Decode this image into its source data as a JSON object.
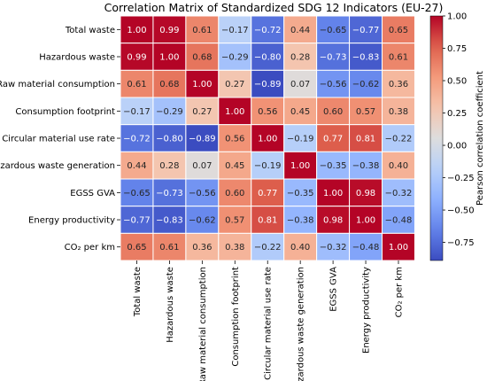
{
  "chart_data": {
    "type": "heatmap",
    "title": "Correlation Matrix of Standardized SDG 12 Indicators (EU-27)",
    "labels": [
      "Total waste",
      "Hazardous waste",
      "Raw material consumption",
      "Consumption footprint",
      "Circular material use rate",
      "Hazardous waste generation",
      "EGSS GVA",
      "Energy productivity",
      "CO₂ per km"
    ],
    "values": [
      [
        1.0,
        0.99,
        0.61,
        -0.17,
        -0.72,
        0.44,
        -0.65,
        -0.77,
        0.65
      ],
      [
        0.99,
        1.0,
        0.68,
        -0.29,
        -0.8,
        0.28,
        -0.73,
        -0.83,
        0.61
      ],
      [
        0.61,
        0.68,
        1.0,
        0.27,
        -0.89,
        0.07,
        -0.56,
        -0.62,
        0.36
      ],
      [
        -0.17,
        -0.29,
        0.27,
        1.0,
        0.56,
        0.45,
        0.6,
        0.57,
        0.38
      ],
      [
        -0.72,
        -0.8,
        -0.89,
        0.56,
        1.0,
        -0.19,
        0.77,
        0.81,
        -0.22
      ],
      [
        0.44,
        0.28,
        0.07,
        0.45,
        -0.19,
        1.0,
        -0.35,
        -0.38,
        0.4
      ],
      [
        -0.65,
        -0.73,
        -0.56,
        0.6,
        0.77,
        -0.35,
        1.0,
        0.98,
        -0.32
      ],
      [
        -0.77,
        -0.83,
        -0.62,
        0.57,
        0.81,
        -0.38,
        0.98,
        1.0,
        -0.48
      ],
      [
        0.65,
        0.61,
        0.36,
        0.38,
        -0.22,
        0.4,
        -0.32,
        -0.48,
        1.0
      ]
    ],
    "value_labels": [
      [
        "1.00",
        "0.99",
        "0.61",
        "−0.17",
        "−0.72",
        "0.44",
        "−0.65",
        "−0.77",
        "0.65"
      ],
      [
        "0.99",
        "1.00",
        "0.68",
        "−0.29",
        "−0.80",
        "0.28",
        "−0.73",
        "−0.83",
        "0.61"
      ],
      [
        "0.61",
        "0.68",
        "1.00",
        "0.27",
        "−0.89",
        "0.07",
        "−0.56",
        "−0.62",
        "0.36"
      ],
      [
        "−0.17",
        "−0.29",
        "0.27",
        "1.00",
        "0.56",
        "0.45",
        "0.60",
        "0.57",
        "0.38"
      ],
      [
        "−0.72",
        "−0.80",
        "−0.89",
        "0.56",
        "1.00",
        "−0.19",
        "0.77",
        "0.81",
        "−0.22"
      ],
      [
        "0.44",
        "0.28",
        "0.07",
        "0.45",
        "−0.19",
        "1.00",
        "−0.35",
        "−0.38",
        "0.40"
      ],
      [
        "−0.65",
        "−0.73",
        "−0.56",
        "0.60",
        "0.77",
        "−0.35",
        "1.00",
        "0.98",
        "−0.32"
      ],
      [
        "−0.77",
        "−0.83",
        "−0.62",
        "0.57",
        "0.81",
        "−0.38",
        "0.98",
        "1.00",
        "−0.48"
      ],
      [
        "0.65",
        "0.61",
        "0.36",
        "0.38",
        "−0.22",
        "0.40",
        "−0.32",
        "−0.48",
        "1.00"
      ]
    ],
    "colorbar": {
      "label": "Pearson correlation coefficient",
      "range": [
        -0.89,
        1.0
      ],
      "ticks": [
        1.0,
        0.75,
        0.5,
        0.25,
        0.0,
        -0.25,
        -0.5,
        -0.75
      ],
      "tick_labels": [
        "1.00",
        "0.75",
        "0.50",
        "0.25",
        "0.00",
        "−0.25",
        "−0.50",
        "−0.75"
      ],
      "colormap": "coolwarm"
    },
    "grid": false,
    "legend": "colorbar-right"
  }
}
